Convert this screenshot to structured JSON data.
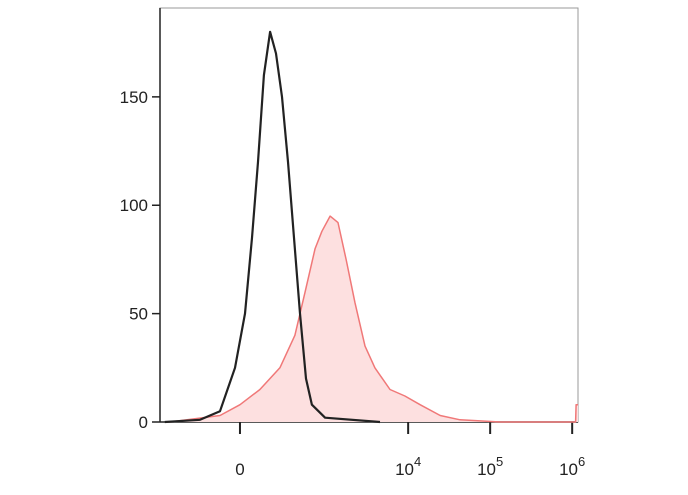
{
  "chart_data": {
    "type": "histogram-overlay",
    "xscale": "asinh",
    "xlim": [
      -831,
      1177700
    ],
    "xticks": [
      0,
      {
        "value": 10000,
        "label": "10",
        "exponent": "4"
      },
      {
        "value": 100000,
        "label": "10",
        "exponent": "5"
      },
      {
        "value": 1000000,
        "label": "10",
        "exponent": "6"
      }
    ],
    "ylim": [
      0,
      191
    ],
    "yticks": [
      0,
      50,
      100,
      150
    ],
    "series": [
      {
        "color": "#f07878",
        "fill": "#fde0e0",
        "x": [
          -625,
          -105,
          0,
          105,
          244,
          397,
          539,
          723,
          880,
          1111,
          1388,
          1746,
          2243,
          2973,
          3934,
          6000,
          9130,
          13990,
          24560,
          42900,
          131700,
          1100000,
          1115000,
          1177700
        ],
        "values": [
          0,
          3,
          8,
          15,
          25,
          40,
          60,
          80,
          88,
          95,
          92,
          75,
          55,
          35,
          25,
          15,
          12,
          8,
          3,
          1,
          0,
          0,
          8,
          8
        ]
      },
      {
        "color": "#222222",
        "x": [
          -724,
          -244,
          -105,
          -25,
          25,
          61,
          94,
          129,
          169,
          212,
          262,
          320,
          386,
          463,
          554,
          659,
          963,
          4540
        ],
        "values": [
          0,
          1,
          5,
          25,
          50,
          85,
          120,
          160,
          180,
          170,
          150,
          120,
          85,
          50,
          20,
          8,
          2,
          0
        ]
      }
    ]
  }
}
